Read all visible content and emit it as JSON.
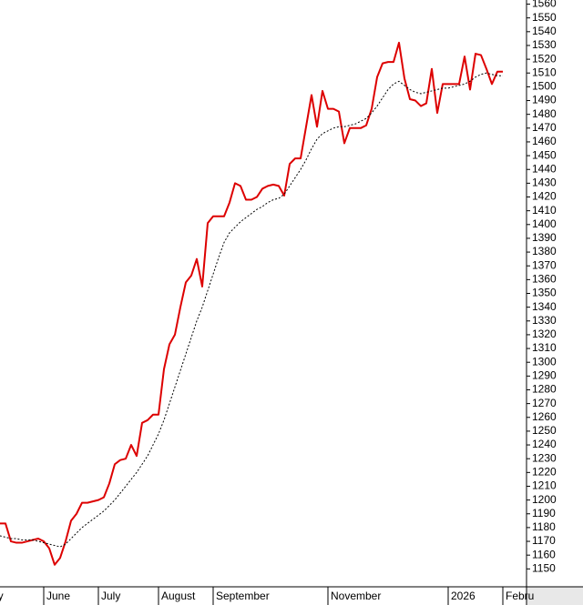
{
  "chart_data": {
    "type": "line",
    "categories": [
      "ay",
      null,
      null,
      null,
      null,
      null,
      null,
      null,
      null,
      null,
      "June",
      null,
      null,
      null,
      null,
      null,
      null,
      null,
      null,
      null,
      "July",
      null,
      null,
      null,
      null,
      null,
      null,
      null,
      null,
      null,
      null,
      "August",
      null,
      null,
      null,
      null,
      null,
      null,
      null,
      null,
      null,
      "September",
      null,
      null,
      null,
      null,
      null,
      null,
      null,
      null,
      null,
      null,
      null,
      null,
      null,
      null,
      null,
      null,
      null,
      null,
      null,
      null,
      "November",
      null,
      null,
      null,
      null,
      null,
      null,
      null,
      null,
      null,
      null,
      null,
      null,
      null,
      null,
      null,
      null,
      null,
      null,
      null,
      null,
      null,
      "2026",
      null,
      null,
      null,
      null,
      null,
      null,
      null,
      null,
      null,
      "Febru"
    ],
    "series": [
      {
        "color": "#dd0000",
        "style": "solid",
        "values": [
          1183,
          1183,
          1183,
          1183,
          1170,
          1169,
          1169,
          1170,
          1171,
          1172,
          1170,
          1165,
          1153,
          1158,
          1170,
          1185,
          1190,
          1198,
          1198,
          1199,
          1200,
          1202,
          1212,
          1226,
          1229,
          1230,
          1240,
          1232,
          1256,
          1258,
          1262,
          1262,
          1295,
          1313,
          1320,
          1340,
          1358,
          1363,
          1375,
          1355,
          1401,
          1406,
          1406,
          1406,
          1416,
          1430,
          1428,
          1418,
          1418,
          1420,
          1426,
          1428,
          1429,
          1428,
          1421,
          1444,
          1448,
          1448,
          1471,
          1494,
          1471,
          1497,
          1484,
          1484,
          1482,
          1459,
          1470,
          1470,
          1470,
          1472,
          1484,
          1507,
          1517,
          1518,
          1518,
          1532,
          1506,
          1491,
          1490,
          1486,
          1488,
          1513,
          1481,
          1502,
          1502,
          1502,
          1502,
          1522,
          1498,
          1524,
          1523,
          1513,
          1502,
          1511,
          1511
        ]
      },
      {
        "color": "#000000",
        "style": "dotted",
        "values": [
          1175,
          1175,
          1174,
          1173,
          1172,
          1172,
          1171,
          1171,
          1171,
          1170,
          1169,
          1168,
          1167,
          1166,
          1168,
          1172,
          1176,
          1180,
          1183,
          1186,
          1189,
          1192,
          1196,
          1200,
          1205,
          1210,
          1215,
          1220,
          1226,
          1232,
          1240,
          1248,
          1258,
          1270,
          1282,
          1294,
          1306,
          1318,
          1330,
          1340,
          1352,
          1364,
          1376,
          1387,
          1394,
          1398,
          1402,
          1405,
          1408,
          1411,
          1413,
          1416,
          1418,
          1419,
          1422,
          1428,
          1434,
          1440,
          1447,
          1455,
          1462,
          1466,
          1468,
          1470,
          1471,
          1471,
          1472,
          1473,
          1475,
          1477,
          1481,
          1486,
          1492,
          1498,
          1502,
          1504,
          1501,
          1498,
          1496,
          1495,
          1496,
          1497,
          1498,
          1499,
          1499,
          1500,
          1501,
          1502,
          1504,
          1507,
          1509,
          1510,
          1509,
          1508,
          1508
        ]
      }
    ],
    "ylim": [
      1137,
      1563
    ],
    "yticks": [
      1150,
      1160,
      1170,
      1180,
      1190,
      1200,
      1210,
      1220,
      1230,
      1240,
      1250,
      1260,
      1270,
      1280,
      1290,
      1300,
      1310,
      1320,
      1330,
      1340,
      1350,
      1360,
      1370,
      1380,
      1390,
      1400,
      1410,
      1420,
      1430,
      1440,
      1450,
      1460,
      1470,
      1480,
      1490,
      1500,
      1510,
      1520,
      1530,
      1540,
      1550,
      1560
    ],
    "y_axis_side": "right",
    "grid": false
  }
}
